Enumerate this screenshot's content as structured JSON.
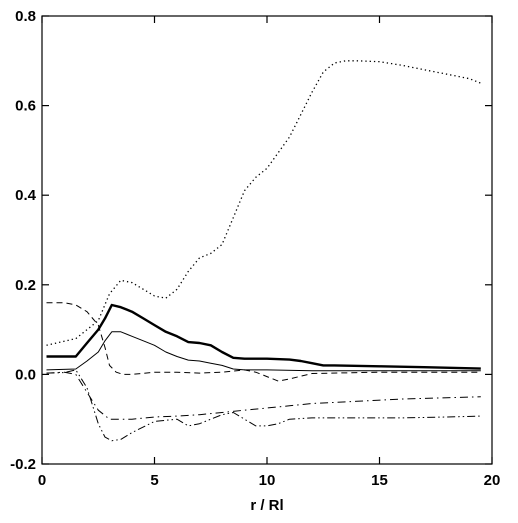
{
  "chart_data": {
    "type": "line",
    "title": "",
    "xlabel": "r / Rl",
    "ylabel": "",
    "xlim": [
      0,
      20
    ],
    "ylim": [
      -0.2,
      0.8
    ],
    "xticks": [
      0,
      5,
      10,
      15,
      20
    ],
    "xtick_labels": [
      "0",
      "5",
      "10",
      "15",
      "20"
    ],
    "yticks": [
      -0.2,
      0.0,
      0.2,
      0.4,
      0.6,
      0.8
    ],
    "ytick_labels": [
      "-0.2",
      "0.0",
      "0.2",
      "0.4",
      "0.6",
      "0.8"
    ],
    "grid": false,
    "legend": "none",
    "series": [
      {
        "style": "solid-thick",
        "color": "#000000",
        "x": [
          0.2,
          1.5,
          2.0,
          2.5,
          2.8,
          3.1,
          3.5,
          4.0,
          4.5,
          5.0,
          5.5,
          6.0,
          6.5,
          7.0,
          7.5,
          8.0,
          8.5,
          9.0,
          10.0,
          11.0,
          11.5,
          12.0,
          12.5,
          13.0,
          15.0,
          17.0,
          19.5
        ],
        "y": [
          0.04,
          0.04,
          0.07,
          0.1,
          0.125,
          0.155,
          0.15,
          0.14,
          0.125,
          0.11,
          0.095,
          0.085,
          0.072,
          0.07,
          0.065,
          0.05,
          0.037,
          0.035,
          0.035,
          0.033,
          0.03,
          0.025,
          0.02,
          0.02,
          0.018,
          0.016,
          0.013
        ]
      },
      {
        "style": "solid-thin",
        "color": "#000000",
        "x": [
          0.2,
          1.5,
          2.0,
          2.5,
          2.8,
          3.1,
          3.5,
          4.0,
          4.5,
          5.0,
          5.5,
          6.0,
          6.5,
          7.0,
          7.5,
          8.0,
          8.5,
          9.0,
          10.0,
          12.0,
          15.0,
          19.5
        ],
        "y": [
          0.01,
          0.012,
          0.03,
          0.05,
          0.075,
          0.095,
          0.095,
          0.085,
          0.075,
          0.065,
          0.05,
          0.04,
          0.032,
          0.03,
          0.025,
          0.02,
          0.012,
          0.01,
          0.01,
          0.008,
          0.008,
          0.008
        ]
      },
      {
        "style": "dotted",
        "color": "#000000",
        "x": [
          0.2,
          1.5,
          2.5,
          3.0,
          3.5,
          4.0,
          4.5,
          5.0,
          5.5,
          6.0,
          6.5,
          7.0,
          7.5,
          8.0,
          8.5,
          9.0,
          9.5,
          10.0,
          10.5,
          11.0,
          11.5,
          12.0,
          12.5,
          13.0,
          13.5,
          14.0,
          15.0,
          16.0,
          17.0,
          18.0,
          19.0,
          19.5
        ],
        "y": [
          0.065,
          0.08,
          0.12,
          0.18,
          0.21,
          0.205,
          0.19,
          0.175,
          0.17,
          0.19,
          0.23,
          0.26,
          0.27,
          0.29,
          0.35,
          0.41,
          0.44,
          0.46,
          0.495,
          0.53,
          0.58,
          0.63,
          0.675,
          0.695,
          0.7,
          0.7,
          0.698,
          0.69,
          0.68,
          0.67,
          0.66,
          0.65
        ]
      },
      {
        "style": "dashed",
        "color": "#000000",
        "x": [
          0.2,
          1.0,
          1.5,
          2.0,
          2.5,
          2.8,
          3.0,
          3.3,
          3.6,
          4.0,
          5.0,
          6.0,
          7.0,
          8.0,
          9.0,
          9.5,
          10.0,
          10.5,
          11.0,
          12.0,
          15.0,
          19.5
        ],
        "y": [
          0.16,
          0.16,
          0.155,
          0.14,
          0.11,
          0.06,
          0.02,
          0.005,
          0.0,
          0.0,
          0.005,
          0.005,
          0.003,
          0.005,
          0.01,
          0.005,
          -0.005,
          -0.015,
          -0.01,
          0.002,
          0.005,
          0.005
        ]
      },
      {
        "style": "dash-dot",
        "color": "#000000",
        "x": [
          0.2,
          1.0,
          1.5,
          2.0,
          2.5,
          3.0,
          3.5,
          4.0,
          5.0,
          6.0,
          7.0,
          8.0,
          9.0,
          10.0,
          11.0,
          12.0,
          14.0,
          16.0,
          18.0,
          19.5
        ],
        "y": [
          0.003,
          0.005,
          0.0,
          -0.04,
          -0.08,
          -0.1,
          -0.1,
          -0.1,
          -0.095,
          -0.093,
          -0.09,
          -0.085,
          -0.08,
          -0.075,
          -0.07,
          -0.065,
          -0.06,
          -0.055,
          -0.052,
          -0.05
        ]
      },
      {
        "style": "dash-dot-dot",
        "color": "#000000",
        "x": [
          0.2,
          1.0,
          1.5,
          2.0,
          2.5,
          2.8,
          3.1,
          3.5,
          4.0,
          5.0,
          6.0,
          6.5,
          7.0,
          7.5,
          8.0,
          8.5,
          9.0,
          9.5,
          10.0,
          10.5,
          11.0,
          12.0,
          14.0,
          16.0,
          18.0,
          19.5
        ],
        "y": [
          0.003,
          0.004,
          0.01,
          -0.03,
          -0.11,
          -0.14,
          -0.148,
          -0.145,
          -0.13,
          -0.105,
          -0.1,
          -0.115,
          -0.11,
          -0.1,
          -0.09,
          -0.085,
          -0.1,
          -0.115,
          -0.115,
          -0.11,
          -0.1,
          -0.097,
          -0.097,
          -0.097,
          -0.095,
          -0.093
        ]
      }
    ]
  }
}
